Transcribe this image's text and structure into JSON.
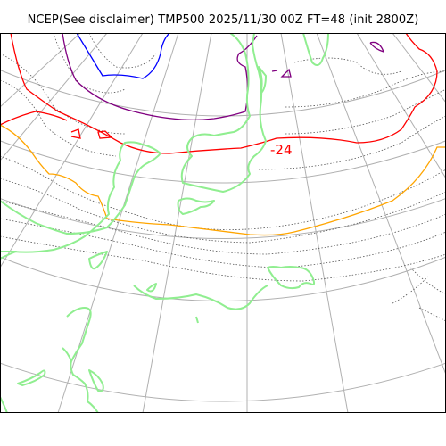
{
  "map": {
    "title": "NCEP(See disclaimer) TMP500 2025/11/30 00Z FT=48 (init 2800Z)",
    "contour_label": "-24",
    "colors": {
      "coastline": "#90ee90",
      "graticule": "#b0b0b0",
      "isotherm_dotted": "#555555",
      "isotherm_blue": "#0000ff",
      "isotherm_purple": "#800080",
      "isotherm_red": "#ff0000",
      "isotherm_orange": "#ffa500"
    }
  }
}
